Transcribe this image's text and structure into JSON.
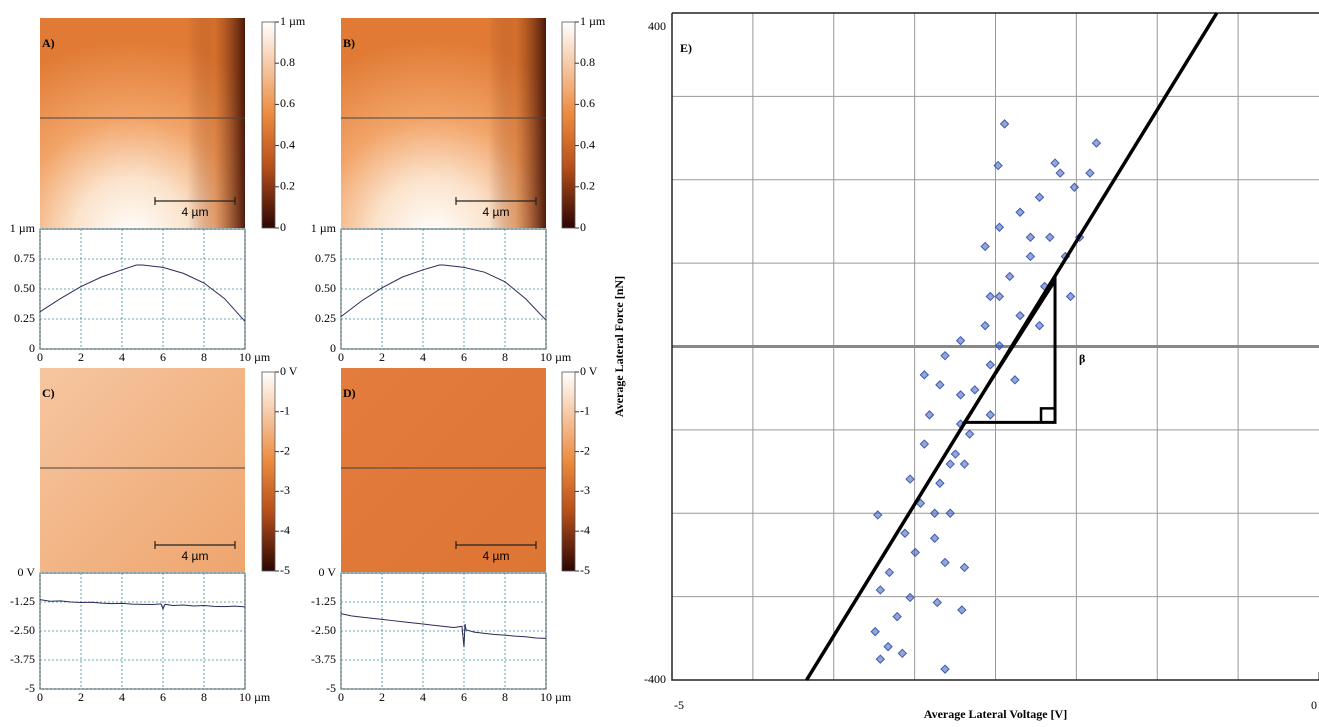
{
  "chart_data": [
    {
      "type": "heatmap",
      "label": "A)",
      "scale_bar": "4 µm",
      "ylim": [
        0,
        1
      ],
      "yticks": [
        {
          "value": 1,
          "label": "1 µm"
        },
        0.8,
        0.6,
        0.4,
        0.2,
        0
      ]
    },
    {
      "type": "line",
      "color": "#2a2a5a",
      "grid": true,
      "xlim": [
        0,
        10
      ],
      "ylim": [
        0,
        1
      ],
      "xticks": [
        0,
        2,
        4,
        6,
        8,
        {
          "value": 10,
          "label": "10 µm"
        }
      ],
      "yticks": [
        0,
        0.25,
        {
          "value": 0.5,
          "label": "0.50"
        },
        0.75,
        {
          "value": 1,
          "label": "1 µm"
        }
      ],
      "x": [
        0,
        1,
        2,
        3,
        4,
        4.7,
        5,
        6,
        7,
        8,
        9,
        10
      ],
      "values": [
        0.31,
        0.42,
        0.52,
        0.6,
        0.66,
        0.7,
        0.7,
        0.68,
        0.63,
        0.55,
        0.42,
        0.23
      ]
    },
    {
      "type": "heatmap",
      "label": "B)",
      "scale_bar": "4 µm",
      "ylim": [
        0,
        1
      ],
      "yticks": [
        {
          "value": 1,
          "label": "1 µm"
        },
        0.8,
        0.6,
        0.4,
        0.2,
        0
      ]
    },
    {
      "type": "line",
      "color": "#2a2a5a",
      "grid": true,
      "xlim": [
        0,
        10
      ],
      "ylim": [
        0,
        1
      ],
      "xticks": [
        0,
        2,
        4,
        6,
        8,
        {
          "value": 10,
          "label": "10 µm"
        }
      ],
      "yticks": [
        0,
        0.25,
        {
          "value": 0.5,
          "label": "0.50"
        },
        0.75,
        {
          "value": 1,
          "label": "1 µm"
        }
      ],
      "x": [
        0,
        1,
        2,
        3,
        4,
        4.8,
        5,
        6,
        7,
        8,
        9,
        10
      ],
      "values": [
        0.27,
        0.4,
        0.51,
        0.6,
        0.66,
        0.7,
        0.7,
        0.68,
        0.64,
        0.56,
        0.42,
        0.24
      ]
    },
    {
      "type": "heatmap",
      "label": "C)",
      "scale_bar": "4 µm",
      "ylim": [
        -5,
        0
      ],
      "yticks": [
        {
          "value": 0,
          "label": "0 V"
        },
        -1,
        -2,
        -3,
        -4,
        -5
      ]
    },
    {
      "type": "line",
      "color": "#2a2a5a",
      "grid": true,
      "xlim": [
        0,
        10
      ],
      "ylim": [
        -5,
        0
      ],
      "xticks": [
        0,
        2,
        4,
        6,
        8,
        {
          "value": 10,
          "label": "10 µm"
        }
      ],
      "yticks": [
        -5,
        {
          "value": -3.75,
          "label": "-3.75"
        },
        {
          "value": -2.5,
          "label": "-2.50"
        },
        -1.25,
        {
          "value": 0,
          "label": "0 V"
        }
      ],
      "x": [
        0,
        0.5,
        1,
        1.5,
        2,
        2.5,
        3,
        3.5,
        4,
        4.5,
        5,
        5.5,
        5.9,
        6,
        6.1,
        6.5,
        7,
        7.5,
        8,
        8.5,
        9,
        9.5,
        10
      ],
      "values": [
        -1.15,
        -1.22,
        -1.2,
        -1.25,
        -1.27,
        -1.26,
        -1.3,
        -1.32,
        -1.31,
        -1.34,
        -1.35,
        -1.36,
        -1.33,
        -1.55,
        -1.35,
        -1.4,
        -1.38,
        -1.42,
        -1.4,
        -1.44,
        -1.45,
        -1.43,
        -1.46
      ]
    },
    {
      "type": "heatmap",
      "label": "D)",
      "scale_bar": "4 µm",
      "ylim": [
        -5,
        0
      ],
      "yticks": [
        {
          "value": 0,
          "label": "0 V"
        },
        -1,
        -2,
        -3,
        -4,
        -5
      ]
    },
    {
      "type": "line",
      "color": "#2a2a5a",
      "grid": true,
      "xlim": [
        0,
        10
      ],
      "ylim": [
        -5,
        0
      ],
      "xticks": [
        0,
        2,
        4,
        6,
        8,
        {
          "value": 10,
          "label": "10 µm"
        }
      ],
      "yticks": [
        -5,
        {
          "value": -3.75,
          "label": "-3.75"
        },
        {
          "value": -2.5,
          "label": "-2.50"
        },
        -1.25,
        {
          "value": 0,
          "label": "0 V"
        }
      ],
      "x": [
        0,
        0.5,
        1,
        1.5,
        2,
        2.5,
        3,
        3.5,
        4,
        4.5,
        5,
        5.5,
        5.9,
        6,
        6.05,
        6.1,
        6.5,
        7,
        7.5,
        8,
        8.5,
        9,
        9.5,
        10
      ],
      "values": [
        -1.75,
        -1.85,
        -1.9,
        -1.95,
        -2.0,
        -2.05,
        -2.1,
        -2.15,
        -2.2,
        -2.25,
        -2.3,
        -2.35,
        -2.3,
        -3.2,
        -2.2,
        -2.45,
        -2.55,
        -2.6,
        -2.65,
        -2.68,
        -2.72,
        -2.75,
        -2.8,
        -2.82
      ]
    },
    {
      "type": "scatter",
      "label": "E)",
      "xlabel": "Average Lateral Voltage [V]",
      "ylabel": "Average Lateral Force [nN]",
      "color": "#3d5bb5",
      "xlim": [
        -5,
        0
      ],
      "ylim": [
        -400,
        400
      ],
      "xticks": [
        -5,
        0
      ],
      "yticks": [
        -400,
        400
      ],
      "xgrid": [
        -4.375,
        -3.75,
        -3.125,
        -2.5,
        -1.875,
        -1.25,
        -0.625
      ],
      "ygrid": [
        -300,
        -200,
        -100,
        0,
        100,
        200,
        300
      ],
      "x": [
        -2.43,
        -2.48,
        -2.0,
        -1.72,
        -2.16,
        -2.31,
        -1.89,
        -2.08,
        -2.23,
        -1.96,
        -2.39,
        -2.12,
        -2.54,
        -2.31,
        -2.58,
        -2.16,
        -2.77,
        -2.47,
        -2.89,
        -2.54,
        -2.93,
        -2.66,
        -2.35,
        -3.01,
        -2.77,
        -2.54,
        -3.05,
        -2.81,
        -3.16,
        -2.93,
        -2.74,
        -3.08,
        -2.85,
        -3.41,
        -3.2,
        -2.97,
        -3.12,
        -2.89,
        -3.32,
        -2.74,
        -3.39,
        -3.16,
        -2.95,
        -2.76,
        -3.26,
        -3.43,
        -3.33,
        -3.39,
        -2.89,
        -3.22,
        -1.92,
        -1.85,
        -2.58,
        -2.47,
        -1.77,
        -2.04,
        -3.05,
        -2.7,
        -2.77,
        -2.47,
        -2.23,
        -2.85,
        -2.97
      ],
      "values": [
        267,
        217,
        208,
        244,
        179,
        161,
        191,
        131,
        108,
        108,
        84,
        72,
        60,
        37,
        25,
        25,
        7,
        1,
        -11,
        -22,
        -46,
        -52,
        -40,
        -82,
        -93,
        -82,
        -117,
        -129,
        -159,
        -164,
        -141,
        -188,
        -200,
        -202,
        -224,
        -230,
        -247,
        -259,
        -271,
        -265,
        -292,
        -301,
        -307,
        -316,
        -324,
        -342,
        -360,
        -375,
        -387,
        -368,
        60,
        131,
        120,
        143,
        208,
        220,
        -34,
        -105,
        -58,
        60,
        131,
        -141,
        -200
      ],
      "fit": {
        "color": "#000000",
        "x": [
          -3.96,
          -0.79
        ],
        "values": [
          -400,
          400
        ]
      },
      "annotation": {
        "text": "β",
        "x": [
          -2.74,
          -2.04,
          -2.04
        ],
        "y": [
          -91,
          -91,
          79
        ]
      }
    }
  ]
}
